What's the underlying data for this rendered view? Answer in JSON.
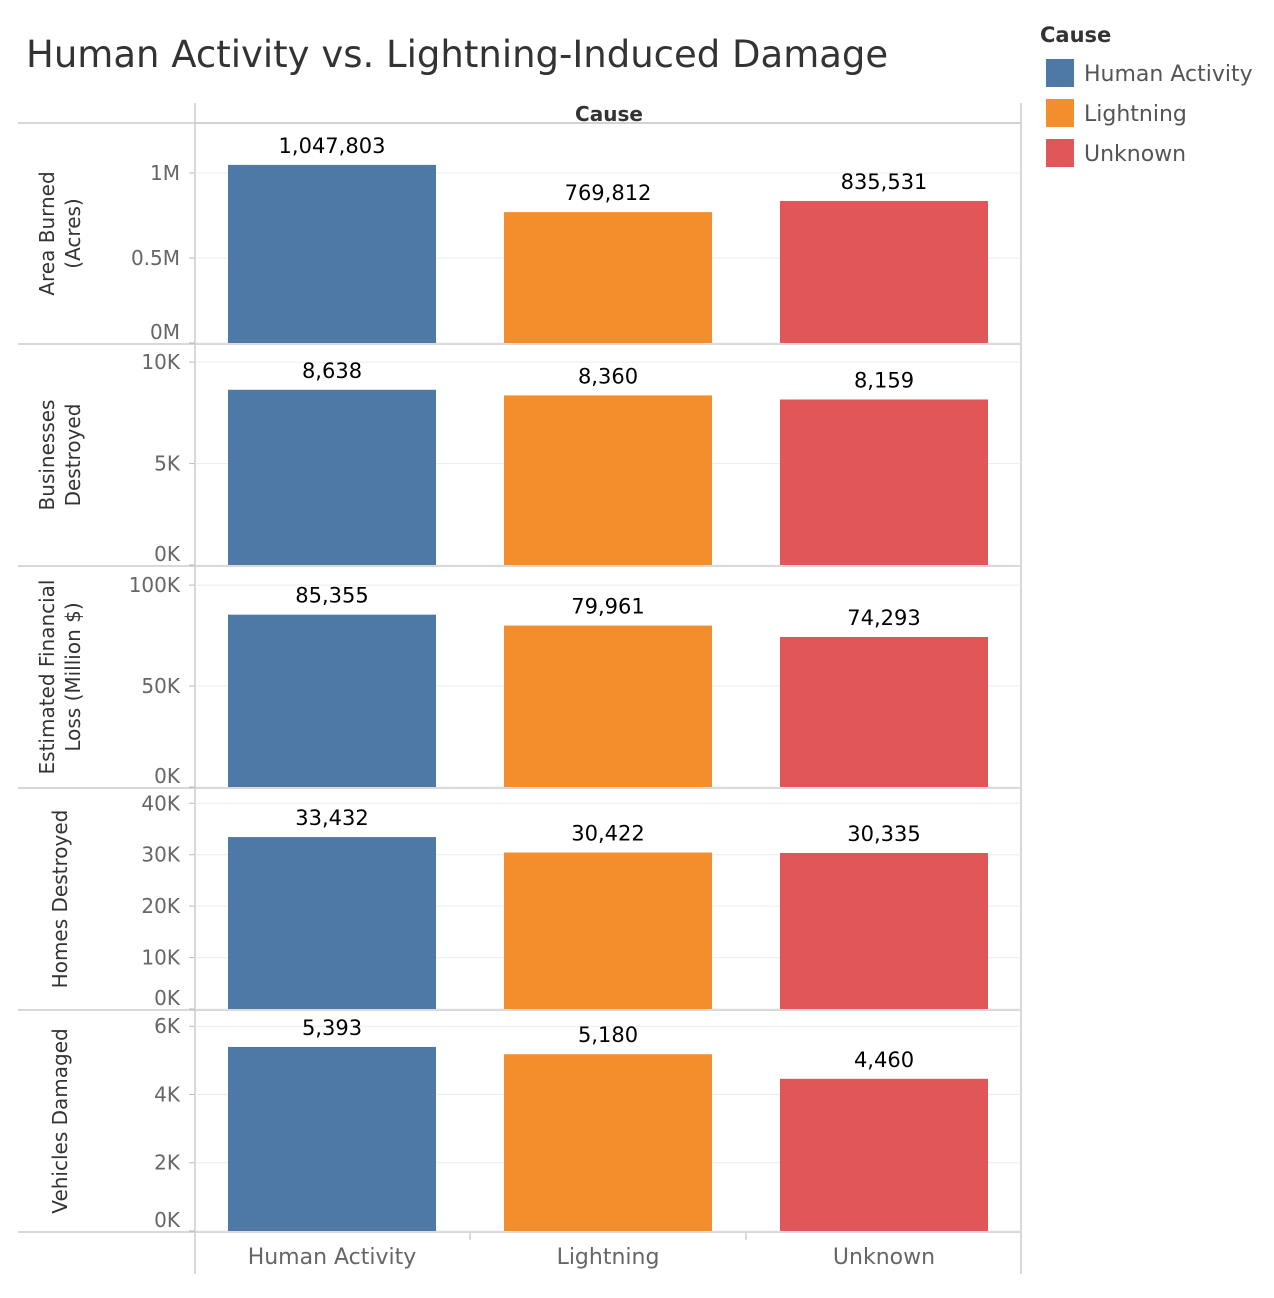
{
  "chart_data": {
    "type": "bar",
    "title": "Human Activity vs. Lightning-Induced Damage",
    "column_header": "Cause",
    "categories": [
      "Human Activity",
      "Lightning",
      "Unknown"
    ],
    "colors": [
      "#4e79a7",
      "#f28e2b",
      "#e15759"
    ],
    "legend": {
      "title": "Cause",
      "placement": "top-right",
      "entries": [
        "Human Activity",
        "Lightning",
        "Unknown"
      ]
    },
    "panels": [
      {
        "label": [
          "Area Burned",
          "(Acres)"
        ],
        "values": [
          1047803,
          769812,
          835531
        ],
        "value_labels": [
          "1,047,803",
          "769,812",
          "835,531"
        ],
        "ylim": [
          0,
          1100000
        ],
        "ticks": [
          0,
          500000,
          1000000
        ],
        "tick_labels": [
          "0M",
          "0.5M",
          "1M"
        ]
      },
      {
        "label": [
          "Businesses",
          "Destroyed"
        ],
        "values": [
          8638,
          8360,
          8159
        ],
        "value_labels": [
          "8,638",
          "8,360",
          "8,159"
        ],
        "ylim": [
          0,
          10500
        ],
        "ticks": [
          0,
          5000,
          10000
        ],
        "tick_labels": [
          "0K",
          "5K",
          "10K"
        ]
      },
      {
        "label": [
          "Estimated Financial",
          "Loss (Million $)"
        ],
        "values": [
          85355,
          79961,
          74293
        ],
        "value_labels": [
          "85,355",
          "79,961",
          "74,293"
        ],
        "ylim": [
          0,
          105000
        ],
        "ticks": [
          0,
          50000,
          100000
        ],
        "tick_labels": [
          "0K",
          "50K",
          "100K"
        ]
      },
      {
        "label": [
          "Homes Destroyed"
        ],
        "values": [
          33432,
          30422,
          30335
        ],
        "value_labels": [
          "33,432",
          "30,422",
          "30,335"
        ],
        "ylim": [
          0,
          42000
        ],
        "ticks": [
          0,
          10000,
          20000,
          30000,
          40000
        ],
        "tick_labels": [
          "0K",
          "10K",
          "20K",
          "30K",
          "40K"
        ]
      },
      {
        "label": [
          "Vehicles Damaged"
        ],
        "values": [
          5393,
          5180,
          4460
        ],
        "value_labels": [
          "5,393",
          "5,180",
          "4,460"
        ],
        "ylim": [
          0,
          6300
        ],
        "ticks": [
          0,
          2000,
          4000,
          6000
        ],
        "tick_labels": [
          "0K",
          "2K",
          "4K",
          "6K"
        ]
      }
    ],
    "grid": true
  }
}
